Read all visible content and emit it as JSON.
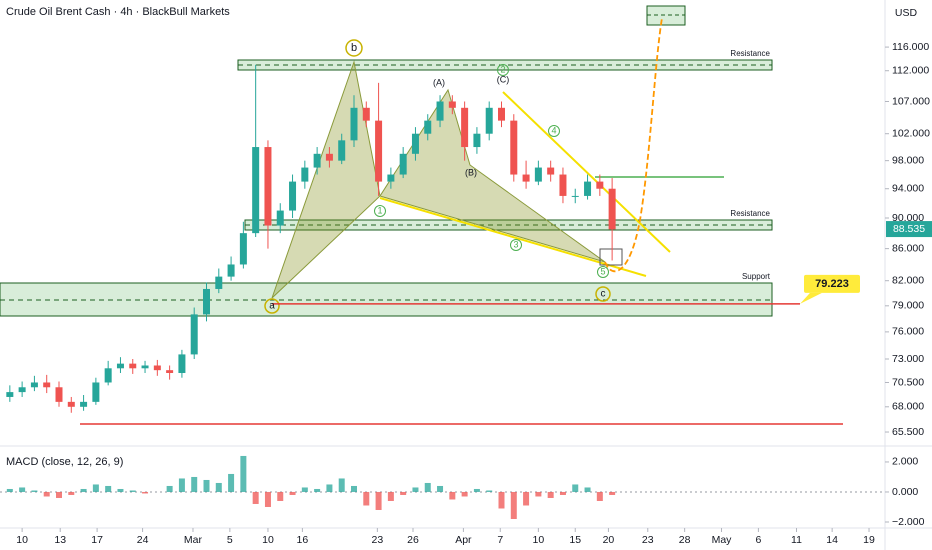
{
  "chart_data": [
    {
      "type": "candlestick",
      "title": "Crude Oil Brent Cash · 4h · BlackBull Markets",
      "ylabel": "USD",
      "log_scale": true,
      "grid": false,
      "up_color": "#26a69a",
      "down_color": "#ef5350",
      "x": [
        -1,
        0,
        1,
        2,
        3,
        4,
        5,
        6,
        7,
        8,
        9,
        10,
        11,
        12,
        13,
        14,
        15,
        16,
        17,
        18,
        19,
        20,
        21,
        22,
        23,
        24,
        25,
        26,
        27,
        28,
        29,
        30,
        31,
        32,
        33,
        34,
        35,
        36,
        37,
        38,
        39,
        40,
        41,
        42,
        43,
        44,
        45,
        46,
        47,
        48
      ],
      "open": [
        69,
        69.5,
        70,
        70.5,
        70,
        68.5,
        68,
        68.5,
        70.5,
        72,
        72.5,
        72,
        72.3,
        71.8,
        71.5,
        73.5,
        78,
        81,
        82.5,
        84,
        88,
        100,
        89,
        91,
        95,
        97,
        99,
        98,
        101,
        106,
        104,
        95,
        96,
        99,
        102,
        104,
        107,
        106,
        100,
        102,
        106,
        104,
        96,
        95,
        97,
        96,
        93,
        93,
        95,
        94
      ],
      "high": [
        70.2,
        70.6,
        71.2,
        71.3,
        70.6,
        69,
        69.2,
        71,
        72.8,
        73.2,
        73,
        72.8,
        72.9,
        72.3,
        74,
        78.8,
        81.8,
        83.5,
        85,
        89.5,
        113,
        101,
        92,
        96,
        98,
        100,
        100,
        102,
        108,
        107,
        110,
        97,
        100,
        103,
        105,
        108,
        108,
        107,
        103,
        107,
        107,
        105,
        98,
        98,
        98,
        97,
        94,
        96,
        96,
        95.5
      ],
      "low": [
        68.5,
        69,
        69.6,
        69.4,
        68,
        67.4,
        67.6,
        68.2,
        70.2,
        71.5,
        71.4,
        71.5,
        71.2,
        70.8,
        71,
        73,
        77.2,
        80.5,
        82,
        83.5,
        87.5,
        86,
        88,
        90,
        94,
        96,
        97,
        97.5,
        100,
        103,
        93,
        94,
        95.5,
        98,
        101,
        103,
        105,
        98,
        99,
        101,
        103,
        95,
        94,
        94.5,
        95,
        92,
        92,
        92.5,
        93,
        84.5
      ],
      "close": [
        69.5,
        70,
        70.5,
        70,
        68.5,
        68,
        68.5,
        70.5,
        72,
        72.5,
        72,
        72.3,
        71.8,
        71.5,
        73.5,
        78,
        81,
        82.5,
        84,
        88,
        100,
        89,
        91,
        95,
        97,
        99,
        98,
        101,
        106,
        104,
        95,
        96,
        99,
        102,
        104,
        107,
        106,
        100,
        102,
        106,
        104,
        96,
        95,
        97,
        96,
        93,
        93,
        95,
        94,
        88.5
      ],
      "xlim": [
        -1.8,
        70.2
      ],
      "xticks": [
        {
          "value": 0,
          "label": "10"
        },
        {
          "value": 3.1,
          "label": "13"
        },
        {
          "value": 6.1,
          "label": "17"
        },
        {
          "value": 9.8,
          "label": "24"
        },
        {
          "value": 13.9,
          "label": "Mar"
        },
        {
          "value": 16.9,
          "label": "5"
        },
        {
          "value": 20,
          "label": "10"
        },
        {
          "value": 22.8,
          "label": "16"
        },
        {
          "value": 28.9,
          "label": "23"
        },
        {
          "value": 31.8,
          "label": "26"
        },
        {
          "value": 35.9,
          "label": "Apr"
        },
        {
          "value": 38.9,
          "label": "7"
        },
        {
          "value": 42,
          "label": "10"
        },
        {
          "value": 45,
          "label": "15"
        },
        {
          "value": 47.7,
          "label": "20"
        },
        {
          "value": 50.9,
          "label": "23"
        },
        {
          "value": 53.9,
          "label": "28"
        },
        {
          "value": 56.9,
          "label": "May"
        },
        {
          "value": 59.9,
          "label": "6"
        },
        {
          "value": 63,
          "label": "11"
        },
        {
          "value": 65.9,
          "label": "14"
        },
        {
          "value": 68.9,
          "label": "19"
        }
      ],
      "ylim": [
        64.25,
        124.4
      ],
      "yticks": [
        {
          "value": 116,
          "label": "116.000"
        },
        {
          "value": 112,
          "label": "112.000"
        },
        {
          "value": 107,
          "label": "107.000"
        },
        {
          "value": 102,
          "label": "102.000"
        },
        {
          "value": 98,
          "label": "98.000"
        },
        {
          "value": 94,
          "label": "94.000"
        },
        {
          "value": 90,
          "label": "90.000"
        },
        {
          "value": 86,
          "label": "86.000"
        },
        {
          "value": 82,
          "label": "82.000"
        },
        {
          "value": 79,
          "label": "79.000"
        },
        {
          "value": 76,
          "label": "76.000"
        },
        {
          "value": 73,
          "label": "73.000"
        },
        {
          "value": 70.5,
          "label": "70.500"
        },
        {
          "value": 68,
          "label": "68.000"
        },
        {
          "value": 65.5,
          "label": "65.500"
        }
      ],
      "price_lines": [
        79.223,
        88.535
      ],
      "annotations": [
        "b",
        "a",
        "c",
        "(A)",
        "(B)",
        "(C)",
        "1",
        "2",
        "3",
        "4",
        "5",
        "Resistance",
        "Resistance",
        "Support"
      ]
    },
    {
      "type": "bar",
      "title": "MACD (close, 12, 26, 9)",
      "up_color": "#26a69a",
      "down_color": "#ef5350",
      "values": [
        0.2,
        0.3,
        0.1,
        -0.3,
        -0.4,
        -0.2,
        0.2,
        0.5,
        0.4,
        0.2,
        0.1,
        -0.1,
        0,
        0.4,
        0.9,
        1,
        0.8,
        0.6,
        1.2,
        2.4,
        -0.8,
        -1,
        -0.6,
        -0.2,
        0.3,
        0.2,
        0.5,
        0.9,
        0.4,
        -0.9,
        -1.2,
        -0.6,
        -0.2,
        0.3,
        0.6,
        0.4,
        -0.5,
        -0.3,
        0.2,
        0.1,
        -1.1,
        -1.8,
        -0.9,
        -0.3,
        -0.4,
        -0.2,
        0.5,
        0.3,
        -0.6,
        -0.2
      ],
      "ylim": [
        -2.4,
        2.93
      ],
      "yticks": [
        {
          "value": 2,
          "label": "2.000"
        },
        {
          "value": 0,
          "label": "0.000"
        },
        {
          "value": -2,
          "label": "−2.000"
        }
      ]
    }
  ]
}
